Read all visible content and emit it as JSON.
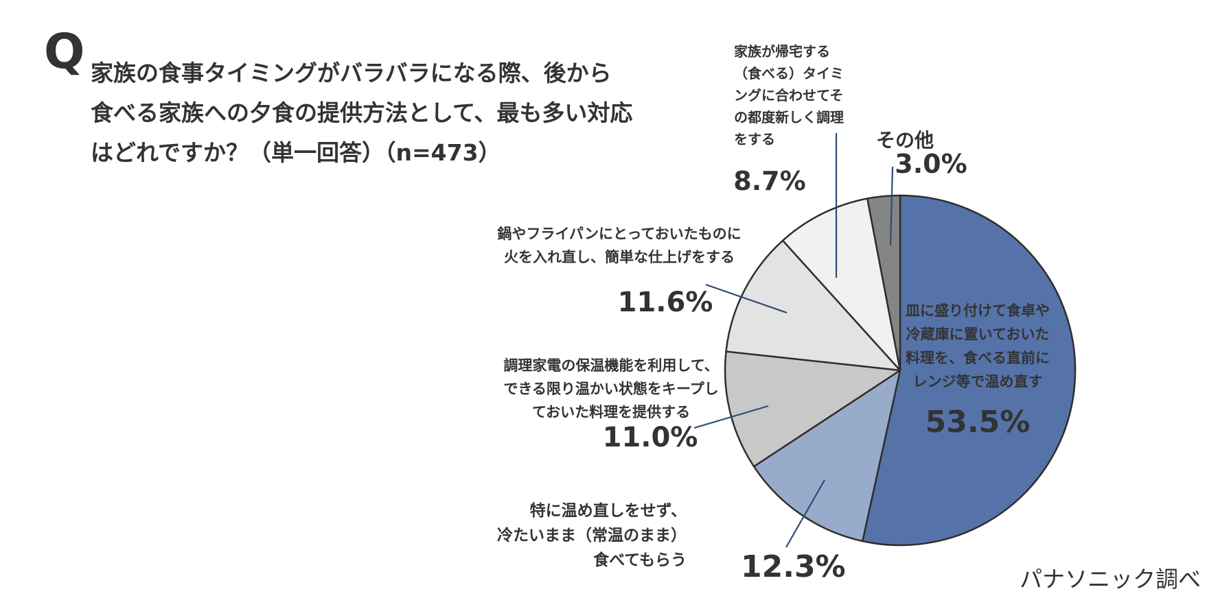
{
  "question": {
    "mark": "Q",
    "lines": [
      "家族の食事タイミングがバラバラになる際、後から",
      "食べる家族への夕食の提供方法として、最も多い対応",
      "はどれですか？（単一回答）（n=473）"
    ]
  },
  "source": "パナソニック調べ",
  "chart_data": {
    "type": "pie",
    "start_angle_deg": 0,
    "direction": "clockwise",
    "slices": [
      {
        "label_lines": [
          "皿に盛り付けて食卓や",
          "冷蔵庫に置いておいた",
          "料理を、食べる直前に",
          "レンジ等で温め直す"
        ],
        "value": 53.5,
        "value_text": "53.5%",
        "color": "#5573a8"
      },
      {
        "label_lines": [
          "特に温め直しをせず、",
          "冷たいまま（常温のまま）",
          "食べてもらう"
        ],
        "value": 12.3,
        "value_text": "12.3%",
        "color": "#98abcb"
      },
      {
        "label_lines": [
          "調理家電の保温機能を利用して、",
          "できる限り温かい状態をキープし",
          "ておいた料理を提供する"
        ],
        "value": 11.0,
        "value_text": "11.0%",
        "color": "#c8c8c8"
      },
      {
        "label_lines": [
          "鍋やフライパンにとっておいたものに",
          "火を入れ直し、簡単な仕上げをする"
        ],
        "value": 11.6,
        "value_text": "11.6%",
        "color": "#e3e3e3"
      },
      {
        "label_lines": [
          "家族が帰宅する",
          "（食べる）タイミ",
          "ングに合わせてそ",
          "の都度新しく調理",
          "をする"
        ],
        "value": 8.7,
        "value_text": "8.7%",
        "color": "#f1f1f1"
      },
      {
        "label_lines": [
          "その他"
        ],
        "value": 3.0,
        "value_text": "3.0%",
        "color": "#858585"
      }
    ]
  }
}
